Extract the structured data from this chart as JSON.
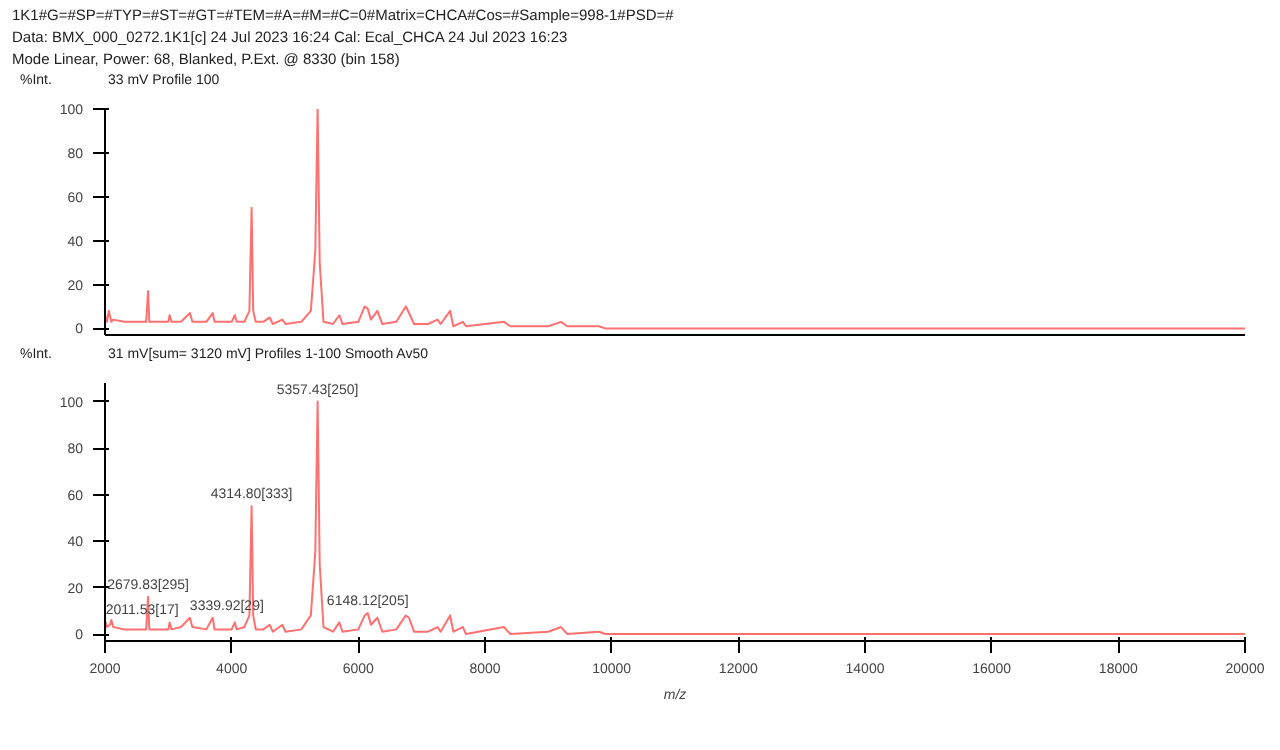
{
  "chart_data": [
    {
      "type": "line",
      "annotations": [
        "1K1#G=#SP=#TYP=#ST=#GT=#TEM=#A=#M=#C=0#Matrix=CHCA#Cos=#Sample=998-1#PSD=#",
        "Data: BMX_000_0272.1K1[c] 24 Jul 2023 16:24 Cal: Ecal_CHCA 24 Jul 2023 16:23",
        "Mode Linear, Power: 68, Blanked, P.Ext. @ 8330 (bin 158)"
      ],
      "ylabel": "%Int.",
      "subtitle": "33 mV  Profile 100",
      "tick_labels": "y",
      "grid": false,
      "marker": "none",
      "line_style": "solid",
      "xlim": [
        2000,
        20000
      ],
      "xticks": [
        2000,
        4000,
        6000,
        8000,
        10000,
        12000,
        14000,
        16000,
        18000,
        20000
      ],
      "ylim": [
        -3,
        100
      ],
      "yticks": [
        0,
        20,
        40,
        60,
        80,
        100
      ],
      "series": [
        {
          "color": "#ff7070",
          "x": [
            2000,
            2030,
            2060,
            2100,
            2130,
            2300,
            2500,
            2650,
            2679.8,
            2700,
            3000,
            3020,
            3050,
            3200,
            3340,
            3380,
            3600,
            3700,
            3730,
            4000,
            4050,
            4080,
            4200,
            4280,
            4314.8,
            4340,
            4380,
            4500,
            4600,
            4650,
            4800,
            4850,
            5100,
            5250,
            5320,
            5357.4,
            5390,
            5450,
            5600,
            5700,
            5750,
            6000,
            6100,
            6148,
            6200,
            6300,
            6380,
            6600,
            6750,
            6800,
            6880,
            7100,
            7250,
            7300,
            7450,
            7500,
            7650,
            7700,
            8300,
            8400,
            9000,
            9200,
            9300,
            9800,
            9900,
            12000,
            20000
          ],
          "values": [
            6,
            3,
            8,
            3,
            4,
            3,
            3,
            3,
            17,
            3,
            3,
            6,
            3,
            3,
            7,
            3,
            3,
            7,
            3,
            3,
            6,
            3,
            3,
            8,
            55,
            8,
            3,
            3,
            5,
            2,
            4,
            2,
            3,
            8,
            35,
            100,
            30,
            3,
            2,
            6,
            2,
            3,
            10,
            9,
            4,
            8,
            2,
            3,
            10,
            7,
            2,
            2,
            4,
            2,
            8,
            1,
            3,
            1,
            3,
            1,
            1,
            3,
            1,
            1,
            0,
            0,
            0
          ]
        }
      ]
    },
    {
      "type": "line",
      "ylabel": "%Int.",
      "subtitle": "31 mV[sum= 3120 mV]  Profiles 1-100 Smooth Av50",
      "xlabel": "m/z",
      "grid": false,
      "marker": "none",
      "line_style": "solid",
      "xlim": [
        2000,
        20000
      ],
      "xticks": [
        2000,
        4000,
        6000,
        8000,
        10000,
        12000,
        14000,
        16000,
        18000,
        20000
      ],
      "ylim": [
        -3,
        108
      ],
      "yticks": [
        0,
        20,
        40,
        60,
        80,
        100
      ],
      "annotations": [
        {
          "text": "2011.53[17]",
          "x": 2011.53,
          "y": 5
        },
        {
          "text": "2679.83[295]",
          "x": 2679.83,
          "y": 16
        },
        {
          "text": "3339.92[29]",
          "x": 3339.92,
          "y": 7
        },
        {
          "text": "4314.80[333]",
          "x": 4314.8,
          "y": 55
        },
        {
          "text": "5357.43[250]",
          "x": 5357.43,
          "y": 100
        },
        {
          "text": "6148.12[205]",
          "x": 6148.12,
          "y": 9
        }
      ],
      "series": [
        {
          "color": "#ff7070",
          "x": [
            2000,
            2011.53,
            2030,
            2080,
            2100,
            2130,
            2300,
            2500,
            2650,
            2679.83,
            2700,
            3000,
            3020,
            3050,
            3200,
            3339.92,
            3380,
            3600,
            3700,
            3730,
            4000,
            4050,
            4080,
            4200,
            4280,
            4314.8,
            4340,
            4380,
            4500,
            4600,
            4650,
            4800,
            4850,
            5100,
            5250,
            5320,
            5357.43,
            5390,
            5450,
            5600,
            5700,
            5750,
            6000,
            6100,
            6148.12,
            6200,
            6300,
            6380,
            6600,
            6750,
            6800,
            6880,
            7100,
            7250,
            7300,
            7450,
            7500,
            7650,
            7700,
            8300,
            8400,
            9000,
            9200,
            9300,
            9800,
            9900,
            12000,
            20000
          ],
          "values": [
            3,
            5,
            3,
            4,
            6,
            3,
            2,
            2,
            2,
            16,
            2,
            2,
            5,
            2,
            3,
            7,
            3,
            2,
            7,
            2,
            2,
            5,
            2,
            3,
            8,
            55,
            8,
            2,
            2,
            4,
            1,
            4,
            1,
            2,
            8,
            35,
            100,
            30,
            3,
            1,
            5,
            1,
            2,
            8,
            9,
            4,
            7,
            1,
            2,
            8,
            7,
            1,
            1,
            3,
            1,
            8,
            1,
            3,
            0,
            3,
            0,
            1,
            3,
            0,
            1,
            0,
            0,
            0
          ]
        }
      ]
    }
  ]
}
